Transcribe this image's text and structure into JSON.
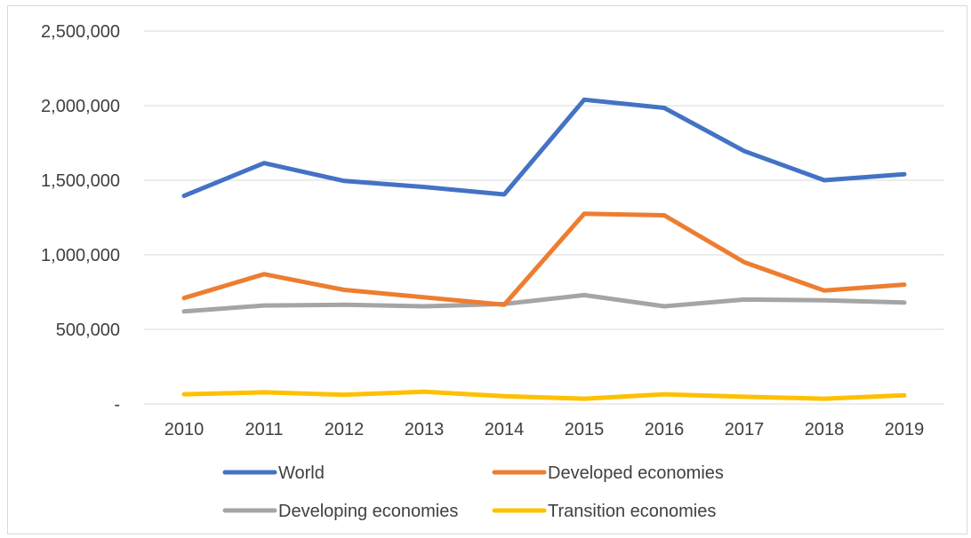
{
  "chart_data": {
    "type": "line",
    "title": "",
    "xlabel": "",
    "ylabel": "",
    "x": [
      "2010",
      "2011",
      "2012",
      "2013",
      "2014",
      "2015",
      "2016",
      "2017",
      "2018",
      "2019"
    ],
    "ylim": [
      0,
      2500000
    ],
    "yticks": [
      {
        "value": 0,
        "label": "-"
      },
      {
        "value": 500000,
        "label": "500,000"
      },
      {
        "value": 1000000,
        "label": "1,000,000"
      },
      {
        "value": 1500000,
        "label": "1,500,000"
      },
      {
        "value": 2000000,
        "label": "2,000,000"
      },
      {
        "value": 2500000,
        "label": "2,500,000"
      }
    ],
    "grid": true,
    "legend_position": "bottom",
    "series": [
      {
        "name": "World",
        "color": "#4472c4",
        "values": [
          1395000,
          1615000,
          1495000,
          1455000,
          1405000,
          2040000,
          1985000,
          1695000,
          1500000,
          1540000
        ]
      },
      {
        "name": "Developed economies",
        "color": "#ed7d31",
        "values": [
          710000,
          870000,
          765000,
          715000,
          665000,
          1275000,
          1265000,
          950000,
          760000,
          800000
        ]
      },
      {
        "name": "Developing economies",
        "color": "#a5a5a5",
        "values": [
          620000,
          660000,
          665000,
          655000,
          670000,
          730000,
          655000,
          700000,
          695000,
          680000
        ]
      },
      {
        "name": "Transition economies",
        "color": "#ffc000",
        "values": [
          65000,
          78000,
          62000,
          82000,
          52000,
          35000,
          65000,
          48000,
          35000,
          58000
        ]
      }
    ]
  }
}
